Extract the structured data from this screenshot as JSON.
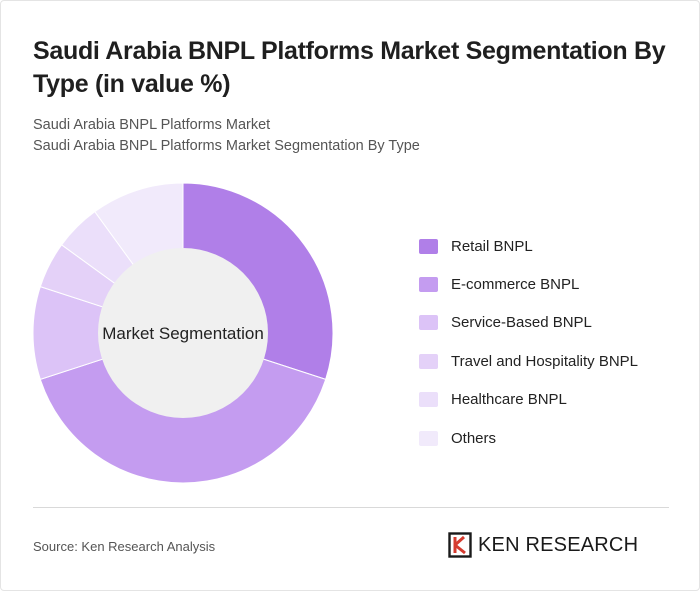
{
  "header": {
    "title": "Saudi Arabia BNPL Platforms Market Segmentation By Type (in value %)",
    "subtitle_line1": "Saudi Arabia BNPL Platforms Market",
    "subtitle_line2": "Saudi Arabia BNPL Platforms Market Segmentation By Type"
  },
  "chart_data": {
    "type": "pie",
    "variant": "donut",
    "center_label": "Market Segmentation",
    "categories": [
      "Retail BNPL",
      "E-commerce BNPL",
      "Service-Based BNPL",
      "Travel and Hospitality BNPL",
      "Healthcare BNPL",
      "Others"
    ],
    "values": [
      30,
      40,
      10,
      5,
      5,
      10
    ],
    "colors": [
      "#b07fe8",
      "#c49cf0",
      "#dcc3f7",
      "#e4d1f8",
      "#ebdffa",
      "#f1eafb"
    ],
    "legend_position": "right"
  },
  "footer": {
    "source": "Source: Ken Research Analysis",
    "logo_text": "KEN RESEARCH"
  }
}
